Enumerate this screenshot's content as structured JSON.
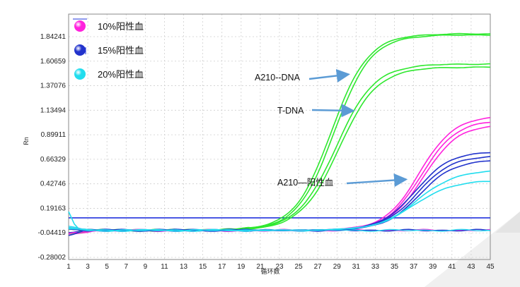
{
  "chart_data": {
    "type": "line",
    "title": "",
    "xlabel": "循环数",
    "ylabel": "Rn",
    "xlim": [
      1,
      45
    ],
    "ylim": [
      -0.28002,
      2.0
    ],
    "x_ticks": [
      1,
      3,
      5,
      7,
      9,
      11,
      13,
      15,
      17,
      19,
      21,
      23,
      25,
      27,
      29,
      31,
      33,
      35,
      37,
      39,
      41,
      43,
      45
    ],
    "y_ticks": [
      "1.84241",
      "1.60659",
      "1.37076",
      "1.13494",
      "0.89911",
      "0.66329",
      "0.42746",
      "0.19163",
      "-0.04419",
      "-0.28002"
    ],
    "y_tick_values": [
      1.84241,
      1.60659,
      1.37076,
      1.13494,
      0.89911,
      0.66329,
      0.42746,
      0.19163,
      -0.04419,
      -0.28002
    ],
    "threshold": 0.1,
    "legend": [
      {
        "label": "10%阳性血",
        "color": "#ff22dd"
      },
      {
        "label": "15%阳性血",
        "color": "#2233cc"
      },
      {
        "label": "20%阳性血",
        "color": "#22ddee"
      }
    ],
    "annotations": [
      {
        "text": "A210--DNA",
        "target_cycle": 30.5,
        "target_value": 1.48
      },
      {
        "text": "T-DNA",
        "target_cycle": 31,
        "target_value": 1.13
      },
      {
        "text": "A210—阳性血",
        "target_cycle": 36.5,
        "target_value": 0.47
      }
    ],
    "series": [
      {
        "name": "A210-DNA a",
        "color": "#2ee82e",
        "baseline": -0.02,
        "plateau": 1.87,
        "midpoint": 28.4,
        "slope": 0.52
      },
      {
        "name": "A210-DNA b",
        "color": "#2ee82e",
        "baseline": -0.02,
        "plateau": 1.86,
        "midpoint": 28.7,
        "slope": 0.52
      },
      {
        "name": "T-DNA a",
        "color": "#2ee82e",
        "baseline": -0.02,
        "plateau": 1.58,
        "midpoint": 28.9,
        "slope": 0.5
      },
      {
        "name": "T-DNA b",
        "color": "#2ee82e",
        "baseline": -0.02,
        "plateau": 1.55,
        "midpoint": 29.2,
        "slope": 0.5
      },
      {
        "name": "10%阳性血 a",
        "color": "#ff22dd",
        "baseline": -0.02,
        "plateau": 1.08,
        "midpoint": 37.6,
        "slope": 0.55
      },
      {
        "name": "10%阳性血 b",
        "color": "#ff22dd",
        "baseline": -0.02,
        "plateau": 1.04,
        "midpoint": 37.8,
        "slope": 0.55
      },
      {
        "name": "10%阳性血 c",
        "color": "#ff22dd",
        "baseline": -0.02,
        "plateau": 1.0,
        "midpoint": 38.0,
        "slope": 0.55
      },
      {
        "name": "15%阳性血 a",
        "color": "#2233cc",
        "baseline": -0.02,
        "plateau": 0.74,
        "midpoint": 37.2,
        "slope": 0.55
      },
      {
        "name": "15%阳性血 b",
        "color": "#2233cc",
        "baseline": -0.02,
        "plateau": 0.7,
        "midpoint": 37.4,
        "slope": 0.55
      },
      {
        "name": "15%阳性血 c",
        "color": "#2233cc",
        "baseline": -0.02,
        "plateau": 0.66,
        "midpoint": 37.6,
        "slope": 0.55
      },
      {
        "name": "20%阳性血 a",
        "color": "#22ddee",
        "baseline": -0.02,
        "plateau": 0.56,
        "midpoint": 37.4,
        "slope": 0.5
      },
      {
        "name": "20%阳性血 b",
        "color": "#22ddee",
        "baseline": -0.02,
        "plateau": 0.46,
        "midpoint": 37.0,
        "slope": 0.5
      }
    ],
    "flat_series": [
      {
        "name": "baseline pink",
        "color": "#ff22dd"
      },
      {
        "name": "baseline blue",
        "color": "#2233cc"
      },
      {
        "name": "baseline cyan",
        "color": "#22ddee"
      }
    ]
  }
}
